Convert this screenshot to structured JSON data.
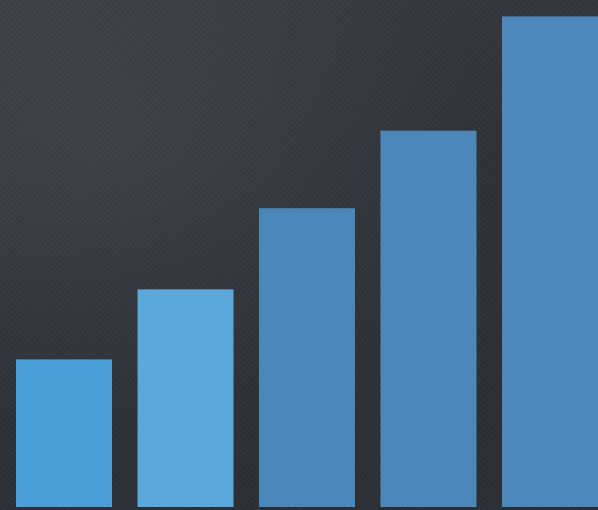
{
  "chart_data": {
    "type": "bar",
    "categories": [
      "",
      "",
      "",
      "",
      ""
    ],
    "values": [
      20,
      29.5,
      40.5,
      51,
      66.5
    ],
    "ylim": [
      0,
      67.5
    ],
    "grid": false,
    "legend": "none",
    "colors": [
      "#4a9fd8",
      "#5aa8dc",
      "#4b87b8",
      "#4b88b9",
      "#4c89ba"
    ],
    "background_color": "#2f3337"
  }
}
